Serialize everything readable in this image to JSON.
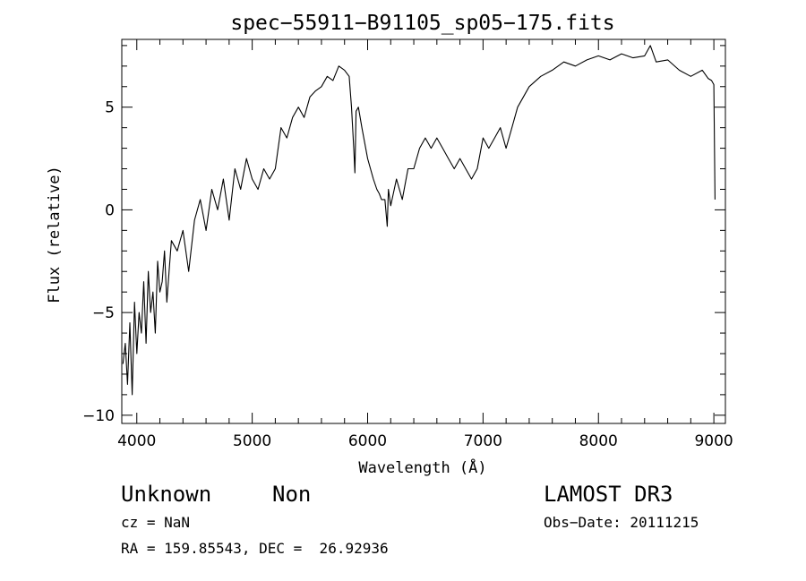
{
  "chart_data": {
    "type": "line",
    "title": "spec−55911−B91105_sp05−175.fits",
    "xlabel": "Wavelength (Å)",
    "ylabel": "Flux (relative)",
    "xlim": [
      3870,
      9100
    ],
    "ylim": [
      -10.4,
      8.3
    ],
    "x_ticks": [
      4000,
      5000,
      6000,
      7000,
      8000,
      9000
    ],
    "y_ticks": [
      -10,
      -5,
      0,
      5
    ],
    "y_tick_labels": [
      "−10",
      "−5",
      "0",
      "5"
    ],
    "grid": false,
    "series": [
      {
        "x": [
          3880,
          3900,
          3920,
          3940,
          3960,
          3980,
          4000,
          4020,
          4040,
          4060,
          4080,
          4100,
          4120,
          4140,
          4160,
          4180,
          4200,
          4220,
          4240,
          4260,
          4280,
          4300,
          4350,
          4400,
          4450,
          4500,
          4550,
          4600,
          4650,
          4700,
          4750,
          4800,
          4850,
          4900,
          4950,
          5000,
          5050,
          5100,
          5150,
          5200,
          5250,
          5300,
          5350,
          5400,
          5450,
          5500,
          5550,
          5600,
          5650,
          5700,
          5750,
          5800,
          5840,
          5860,
          5880,
          5890,
          5900,
          5920,
          5950,
          6000,
          6050,
          6080,
          6100,
          6120,
          6150,
          6170,
          6180,
          6200,
          6250,
          6300,
          6350,
          6400,
          6450,
          6500,
          6550,
          6600,
          6650,
          6700,
          6750,
          6800,
          6850,
          6900,
          6950,
          7000,
          7050,
          7100,
          7150,
          7200,
          7250,
          7300,
          7400,
          7500,
          7600,
          7700,
          7800,
          7900,
          8000,
          8100,
          8200,
          8300,
          8400,
          8450,
          8500,
          8600,
          8700,
          8800,
          8900,
          8950,
          8980,
          9000,
          9010
        ],
        "y": [
          -7.5,
          -6.5,
          -8.5,
          -5.5,
          -9,
          -4.5,
          -7,
          -5,
          -6,
          -3.5,
          -6.5,
          -3,
          -5,
          -4,
          -6,
          -2.5,
          -4,
          -3.5,
          -2,
          -4.5,
          -3,
          -1.5,
          -2,
          -1,
          -3,
          -0.5,
          0.5,
          -1,
          1,
          0,
          1.5,
          -0.5,
          2,
          1,
          2.5,
          1.5,
          1,
          2,
          1.5,
          2,
          4,
          3.5,
          4.5,
          5,
          4.5,
          5.5,
          5.8,
          6,
          6.5,
          6.3,
          7,
          6.8,
          6.5,
          5,
          3,
          1.8,
          4.8,
          5,
          4,
          2.5,
          1.5,
          1,
          0.8,
          0.5,
          0.5,
          -0.8,
          1,
          0.2,
          1.5,
          0.5,
          2,
          2,
          3,
          3.5,
          3,
          3.5,
          3,
          2.5,
          2,
          2.5,
          2,
          1.5,
          2,
          3.5,
          3,
          3.5,
          4,
          3,
          4,
          5,
          6,
          6.5,
          6.8,
          7.2,
          7,
          7.3,
          7.5,
          7.3,
          7.6,
          7.4,
          7.5,
          8,
          7.2,
          7.3,
          6.8,
          6.5,
          6.8,
          6.4,
          6.3,
          6.1,
          0.5
        ]
      }
    ]
  },
  "info": {
    "classification": "Unknown",
    "subclass": "Non",
    "cz": "cz = NaN",
    "coords": "RA = 159.85543, DEC =  26.92936",
    "survey": "LAMOST DR3",
    "obs_date": "Obs−Date: 20111215"
  }
}
